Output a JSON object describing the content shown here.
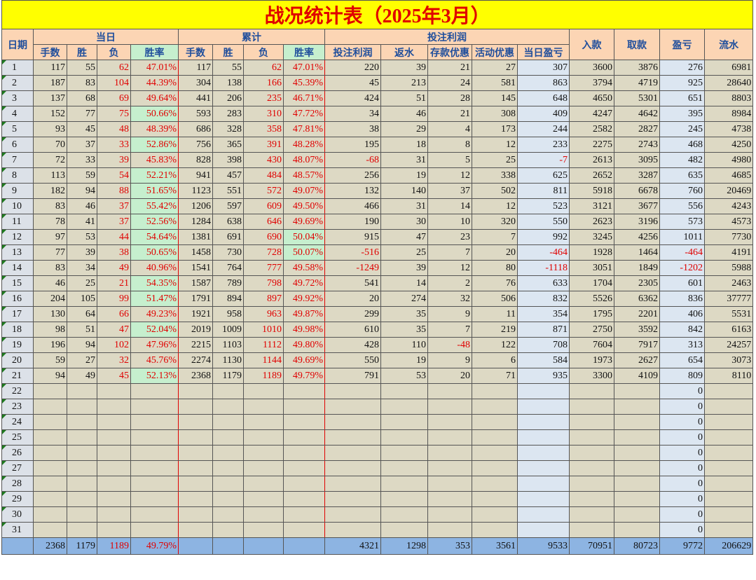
{
  "title": "战况统计表（2025年3月）",
  "header": {
    "date": "日期",
    "daily": "当日",
    "cumulative": "累计",
    "profit": "投注利润",
    "columns": [
      "手数",
      "胜",
      "负",
      "胜率",
      "手数",
      "胜",
      "负",
      "胜率",
      "投注利润",
      "返水",
      "存款优惠",
      "活动优惠",
      "当日盈亏"
    ],
    "deposit": "入款",
    "withdraw": "取款",
    "pl": "盈亏",
    "turnover": "流水"
  },
  "rows": [
    [
      1,
      117,
      55,
      62,
      "47.01%",
      117,
      55,
      62,
      "47.01%",
      220,
      39,
      21,
      27,
      307,
      3600,
      3876,
      276,
      6981
    ],
    [
      2,
      187,
      83,
      104,
      "44.39%",
      304,
      138,
      166,
      "45.39%",
      45,
      213,
      24,
      581,
      863,
      3794,
      4719,
      925,
      28640
    ],
    [
      3,
      137,
      68,
      69,
      "49.64%",
      441,
      206,
      235,
      "46.71%",
      424,
      51,
      28,
      145,
      648,
      4650,
      5301,
      651,
      8803
    ],
    [
      4,
      152,
      77,
      75,
      "50.66%",
      593,
      283,
      310,
      "47.72%",
      34,
      46,
      21,
      308,
      409,
      4247,
      4642,
      395,
      8984
    ],
    [
      5,
      93,
      45,
      48,
      "48.39%",
      686,
      328,
      358,
      "47.81%",
      38,
      29,
      4,
      173,
      244,
      2582,
      2827,
      245,
      4738
    ],
    [
      6,
      70,
      37,
      33,
      "52.86%",
      756,
      365,
      391,
      "48.28%",
      195,
      18,
      8,
      12,
      233,
      2275,
      2743,
      468,
      4250
    ],
    [
      7,
      72,
      33,
      39,
      "45.83%",
      828,
      398,
      430,
      "48.07%",
      -68,
      31,
      5,
      25,
      -7,
      2613,
      3095,
      482,
      4980
    ],
    [
      8,
      113,
      59,
      54,
      "52.21%",
      941,
      457,
      484,
      "48.57%",
      256,
      19,
      12,
      338,
      625,
      2652,
      3287,
      635,
      4685
    ],
    [
      9,
      182,
      94,
      88,
      "51.65%",
      1123,
      551,
      572,
      "49.07%",
      132,
      140,
      37,
      502,
      811,
      5918,
      6678,
      760,
      20469
    ],
    [
      10,
      83,
      46,
      37,
      "55.42%",
      1206,
      597,
      609,
      "49.50%",
      466,
      31,
      14,
      12,
      523,
      3121,
      3677,
      556,
      4243
    ],
    [
      11,
      78,
      41,
      37,
      "52.56%",
      1284,
      638,
      646,
      "49.69%",
      190,
      30,
      10,
      320,
      550,
      2623,
      3196,
      573,
      4573
    ],
    [
      12,
      97,
      53,
      44,
      "54.64%",
      1381,
      691,
      690,
      "50.04%",
      915,
      47,
      23,
      7,
      992,
      3245,
      4256,
      1011,
      7730
    ],
    [
      13,
      77,
      39,
      38,
      "50.65%",
      1458,
      730,
      728,
      "50.07%",
      -516,
      25,
      7,
      20,
      -464,
      1928,
      1464,
      -464,
      4191
    ],
    [
      14,
      83,
      34,
      49,
      "40.96%",
      1541,
      764,
      777,
      "49.58%",
      -1249,
      39,
      12,
      80,
      -1118,
      3051,
      1849,
      -1202,
      5988
    ],
    [
      15,
      46,
      25,
      21,
      "54.35%",
      1587,
      789,
      798,
      "49.72%",
      541,
      14,
      2,
      76,
      633,
      1704,
      2305,
      601,
      2463
    ],
    [
      16,
      204,
      105,
      99,
      "51.47%",
      1791,
      894,
      897,
      "49.92%",
      20,
      274,
      32,
      506,
      832,
      5526,
      6362,
      836,
      37777
    ],
    [
      17,
      130,
      64,
      66,
      "49.23%",
      1921,
      958,
      963,
      "49.87%",
      299,
      35,
      9,
      11,
      354,
      1795,
      2201,
      406,
      5531
    ],
    [
      18,
      98,
      51,
      47,
      "52.04%",
      2019,
      1009,
      1010,
      "49.98%",
      610,
      35,
      7,
      219,
      871,
      2750,
      3592,
      842,
      6163
    ],
    [
      19,
      196,
      94,
      102,
      "47.96%",
      2215,
      1103,
      1112,
      "49.80%",
      428,
      110,
      -48,
      122,
      708,
      7604,
      7917,
      313,
      24257
    ],
    [
      20,
      59,
      27,
      32,
      "45.76%",
      2274,
      1130,
      1144,
      "49.69%",
      550,
      19,
      9,
      6,
      584,
      1973,
      2627,
      654,
      3073
    ],
    [
      21,
      94,
      49,
      45,
      "52.13%",
      2368,
      1179,
      1189,
      "49.79%",
      791,
      53,
      20,
      71,
      935,
      3300,
      4109,
      809,
      8110
    ],
    [
      22,
      null,
      null,
      null,
      null,
      null,
      null,
      null,
      null,
      null,
      null,
      null,
      null,
      null,
      null,
      null,
      0,
      null
    ],
    [
      23,
      null,
      null,
      null,
      null,
      null,
      null,
      null,
      null,
      null,
      null,
      null,
      null,
      null,
      null,
      null,
      0,
      null
    ],
    [
      24,
      null,
      null,
      null,
      null,
      null,
      null,
      null,
      null,
      null,
      null,
      null,
      null,
      null,
      null,
      null,
      0,
      null
    ],
    [
      25,
      null,
      null,
      null,
      null,
      null,
      null,
      null,
      null,
      null,
      null,
      null,
      null,
      null,
      null,
      null,
      0,
      null
    ],
    [
      26,
      null,
      null,
      null,
      null,
      null,
      null,
      null,
      null,
      null,
      null,
      null,
      null,
      null,
      null,
      null,
      0,
      null
    ],
    [
      27,
      null,
      null,
      null,
      null,
      null,
      null,
      null,
      null,
      null,
      null,
      null,
      null,
      null,
      null,
      null,
      0,
      null
    ],
    [
      28,
      null,
      null,
      null,
      null,
      null,
      null,
      null,
      null,
      null,
      null,
      null,
      null,
      null,
      null,
      null,
      0,
      null
    ],
    [
      29,
      null,
      null,
      null,
      null,
      null,
      null,
      null,
      null,
      null,
      null,
      null,
      null,
      null,
      null,
      null,
      0,
      null
    ],
    [
      30,
      null,
      null,
      null,
      null,
      null,
      null,
      null,
      null,
      null,
      null,
      null,
      null,
      null,
      null,
      null,
      0,
      null
    ],
    [
      31,
      null,
      null,
      null,
      null,
      null,
      null,
      null,
      null,
      null,
      null,
      null,
      null,
      null,
      null,
      null,
      0,
      null
    ]
  ],
  "total": [
    null,
    2368,
    1179,
    1189,
    "49.79%",
    null,
    null,
    null,
    null,
    4321,
    1298,
    353,
    3561,
    9533,
    70951,
    80723,
    9772,
    206629
  ]
}
